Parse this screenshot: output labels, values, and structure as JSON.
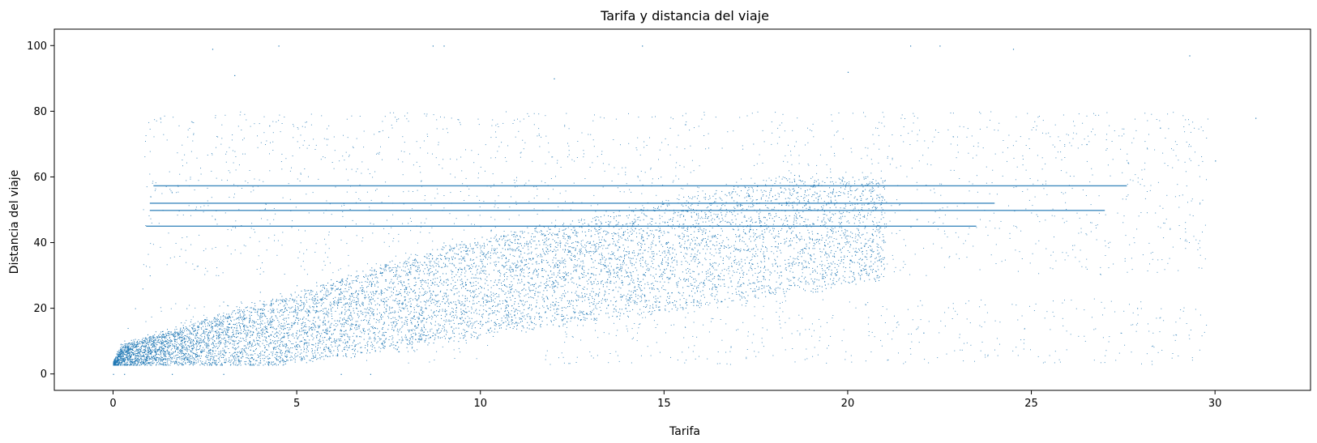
{
  "chart_data": {
    "type": "scatter",
    "title": "Tarifa y distancia del viaje",
    "xlabel": "Tarifa",
    "ylabel": "Distancia del viaje",
    "xlim": [
      -1.6,
      32.6
    ],
    "ylim": [
      -5,
      105
    ],
    "xticks": [
      0,
      5,
      10,
      15,
      20,
      25,
      30
    ],
    "yticks": [
      0,
      20,
      40,
      60,
      80,
      100
    ],
    "grid": false,
    "legend": "none",
    "point_color": "#1f77b4",
    "series": [
      {
        "main_body": {
          "description_points_x_y": [
            [
              0.1,
              3
            ],
            [
              0.2,
              6
            ],
            [
              0.4,
              14
            ],
            [
              0.6,
              20
            ],
            [
              0.8,
              26
            ],
            [
              1,
              30
            ],
            [
              2,
              8
            ],
            [
              2,
              20
            ],
            [
              3,
              12
            ],
            [
              3,
              22
            ],
            [
              4,
              15
            ],
            [
              4,
              25
            ],
            [
              5,
              18
            ],
            [
              5,
              27
            ],
            [
              6,
              10
            ],
            [
              6,
              22
            ],
            [
              7,
              25
            ],
            [
              7,
              30
            ],
            [
              8,
              20
            ],
            [
              8,
              33
            ],
            [
              9,
              28
            ],
            [
              9,
              40
            ],
            [
              10,
              25
            ],
            [
              10,
              35
            ],
            [
              10,
              45
            ],
            [
              11,
              30
            ],
            [
              11,
              40
            ],
            [
              12,
              25
            ],
            [
              12,
              38
            ],
            [
              13,
              28
            ],
            [
              13,
              42
            ],
            [
              14,
              30
            ],
            [
              14,
              45
            ],
            [
              15,
              32
            ],
            [
              15,
              43
            ],
            [
              16,
              28
            ],
            [
              16,
              40
            ],
            [
              17,
              32
            ],
            [
              17,
              45
            ],
            [
              18,
              35
            ],
            [
              18,
              48
            ],
            [
              19,
              36
            ],
            [
              19,
              50
            ],
            [
              20,
              40
            ],
            [
              20,
              55
            ]
          ]
        },
        "bands": [
          {
            "y": 57.3,
            "x_start": 1.1,
            "x_end": 27.6
          },
          {
            "y": 52.0,
            "x_start": 1.0,
            "x_end": 24.0
          },
          {
            "y": 49.8,
            "x_start": 1.0,
            "x_end": 27.0
          },
          {
            "y": 45.0,
            "x_start": 0.9,
            "x_end": 23.5
          }
        ],
        "outliers": [
          [
            2.7,
            99
          ],
          [
            3.3,
            91
          ],
          [
            4.5,
            100
          ],
          [
            8.7,
            100
          ],
          [
            9.0,
            100
          ],
          [
            14.4,
            100
          ],
          [
            21.7,
            100
          ],
          [
            22.5,
            100
          ],
          [
            24.5,
            99
          ],
          [
            29.3,
            97
          ],
          [
            31.1,
            78
          ],
          [
            30.0,
            65
          ],
          [
            28.5,
            75
          ],
          [
            26.5,
            70
          ],
          [
            20.0,
            92
          ],
          [
            12.0,
            90
          ],
          [
            0.0,
            0
          ],
          [
            0.3,
            0
          ],
          [
            1.6,
            0
          ],
          [
            3.0,
            0
          ],
          [
            6.2,
            0
          ],
          [
            7.0,
            0
          ]
        ]
      }
    ]
  }
}
